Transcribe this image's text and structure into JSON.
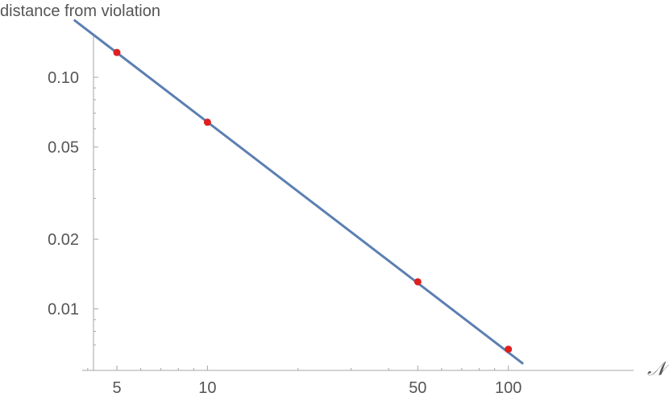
{
  "chart_data": {
    "type": "scatter",
    "xlabel": "𝒩",
    "ylabel": "distance from violation",
    "x_scale": "log",
    "y_scale": "log",
    "xlim": [
      4,
      110
    ],
    "ylim": [
      0.0066,
      0.175
    ],
    "x_ticks": [
      5,
      10,
      50,
      100
    ],
    "x_tick_labels": [
      "5",
      "10",
      "50",
      "100"
    ],
    "y_ticks": [
      0.01,
      0.02,
      0.05,
      0.1
    ],
    "y_tick_labels": [
      "0.01",
      "0.02",
      "0.05",
      "0.10"
    ],
    "grid": false,
    "series": [
      {
        "kind": "points",
        "color": "#e01f1f",
        "x": [
          5,
          10,
          50,
          100
        ],
        "y": [
          0.128,
          0.064,
          0.0131,
          0.0067
        ]
      },
      {
        "kind": "fit-line",
        "color": "#5b7fb2",
        "x": [
          3.6,
          112
        ],
        "y": [
          0.177,
          0.0058
        ]
      }
    ]
  }
}
